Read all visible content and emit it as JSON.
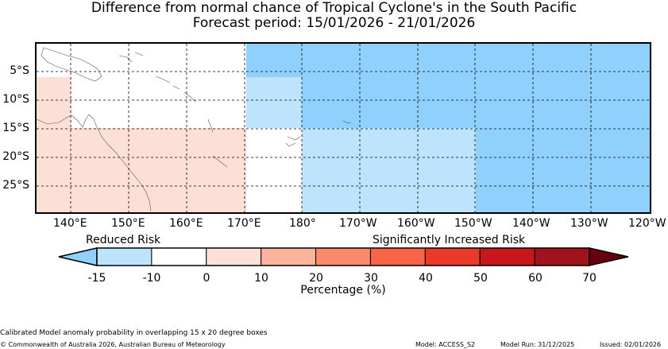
{
  "title": "Difference from normal chance of Tropical Cyclone's in the South Pacific",
  "subtitle": "Forecast period: 15/01/2026 - 21/01/2026",
  "map": {
    "lat_labels": [
      "5°S",
      "10°S",
      "15°S",
      "20°S",
      "25°S"
    ],
    "lon_labels": [
      "140°E",
      "150°E",
      "160°E",
      "170°E",
      "180°",
      "170°W",
      "160°W",
      "150°W",
      "140°W",
      "130°W",
      "120°W"
    ],
    "cell_colors": {
      "strong_reduced": "#8fd0fc",
      "reduced": "#bde4fc",
      "neutral": "#ffffff",
      "slight_increase": "#fde0d5"
    }
  },
  "colorbar": {
    "left_caption": "Reduced Risk",
    "right_caption": "Significantly Increased Risk",
    "ticks": [
      "-15",
      "-10",
      "0",
      "10",
      "20",
      "30",
      "40",
      "50",
      "60",
      "70"
    ],
    "colors": [
      "#bde4fc",
      "#ffffff",
      "#fde0d5",
      "#fcb49c",
      "#fb8a6a",
      "#f86448",
      "#ea3a2c",
      "#c8171c",
      "#a0121c"
    ],
    "under_color": "#8fd0fc",
    "over_color": "#67000d",
    "xlabel": "Percentage (%)"
  },
  "footer": {
    "note": "Calibrated Model anomaly probability in overlapping 15 x 20 degree boxes",
    "copyright": "© Commonwealth of Australia 2026, Australian Bureau of Meteorology",
    "model": "Model: ACCESS_S2",
    "run": "Model Run: 31/12/2025",
    "issued": "Issued: 02/01/2026"
  }
}
